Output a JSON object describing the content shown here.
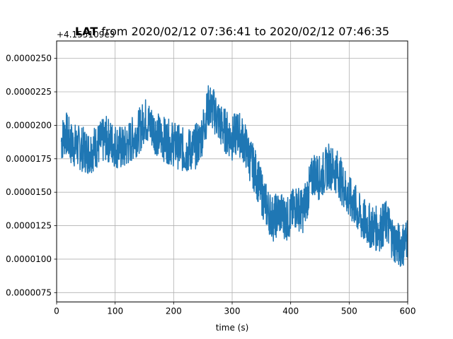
{
  "chart_data": {
    "type": "line",
    "title_bold": "LAT",
    "title_rest": " from 2020/02/12 07:36:41 to 2020/02/12 07:46:35",
    "xlabel": "time (s)",
    "ylabel": "",
    "offset_text": "+4.155109e3",
    "xlim": [
      0,
      600
    ],
    "ylim": [
      6.8e-06,
      2.63e-05
    ],
    "xticks": [
      0,
      100,
      200,
      300,
      400,
      500,
      600
    ],
    "xtick_labels": [
      "0",
      "100",
      "200",
      "300",
      "400",
      "500",
      "600"
    ],
    "yticks": [
      7.5e-06,
      1e-05,
      1.25e-05,
      1.5e-05,
      1.75e-05,
      2e-05,
      2.25e-05,
      2.5e-05
    ],
    "ytick_labels": [
      "0.0000075",
      "0.0000100",
      "0.0000125",
      "0.0000150",
      "0.0000175",
      "0.0000200",
      "0.0000225",
      "0.0000250"
    ],
    "grid": true,
    "series": [
      {
        "color": "#1f77b4",
        "x": [
          8,
          15,
          25,
          40,
          55,
          70,
          85,
          100,
          115,
          130,
          145,
          150,
          160,
          175,
          190,
          205,
          220,
          235,
          245,
          252,
          260,
          270,
          280,
          290,
          300,
          310,
          320,
          330,
          340,
          350,
          360,
          370,
          380,
          395,
          410,
          420,
          430,
          440,
          450,
          465,
          480,
          490,
          500,
          510,
          520,
          535,
          550,
          565,
          575,
          585,
          595,
          600
        ],
        "y": [
          1.88e-05,
          1.95e-05,
          1.86e-05,
          1.83e-05,
          1.8e-05,
          1.85e-05,
          1.9e-05,
          1.85e-05,
          1.82e-05,
          1.9e-05,
          1.98e-05,
          2.05e-05,
          2e-05,
          1.92e-05,
          1.88e-05,
          1.85e-05,
          1.8e-05,
          1.83e-05,
          1.88e-05,
          2e-05,
          2.15e-05,
          2.1e-05,
          2e-05,
          1.95e-05,
          1.9e-05,
          1.95e-05,
          1.88e-05,
          1.75e-05,
          1.65e-05,
          1.5e-05,
          1.38e-05,
          1.3e-05,
          1.35e-05,
          1.3e-05,
          1.4e-05,
          1.35e-05,
          1.5e-05,
          1.65e-05,
          1.6e-05,
          1.7e-05,
          1.65e-05,
          1.55e-05,
          1.45e-05,
          1.4e-05,
          1.3e-05,
          1.25e-05,
          1.22e-05,
          1.28e-05,
          1.15e-05,
          1.1e-05,
          1.12e-05,
          1.18e-05
        ]
      }
    ]
  }
}
